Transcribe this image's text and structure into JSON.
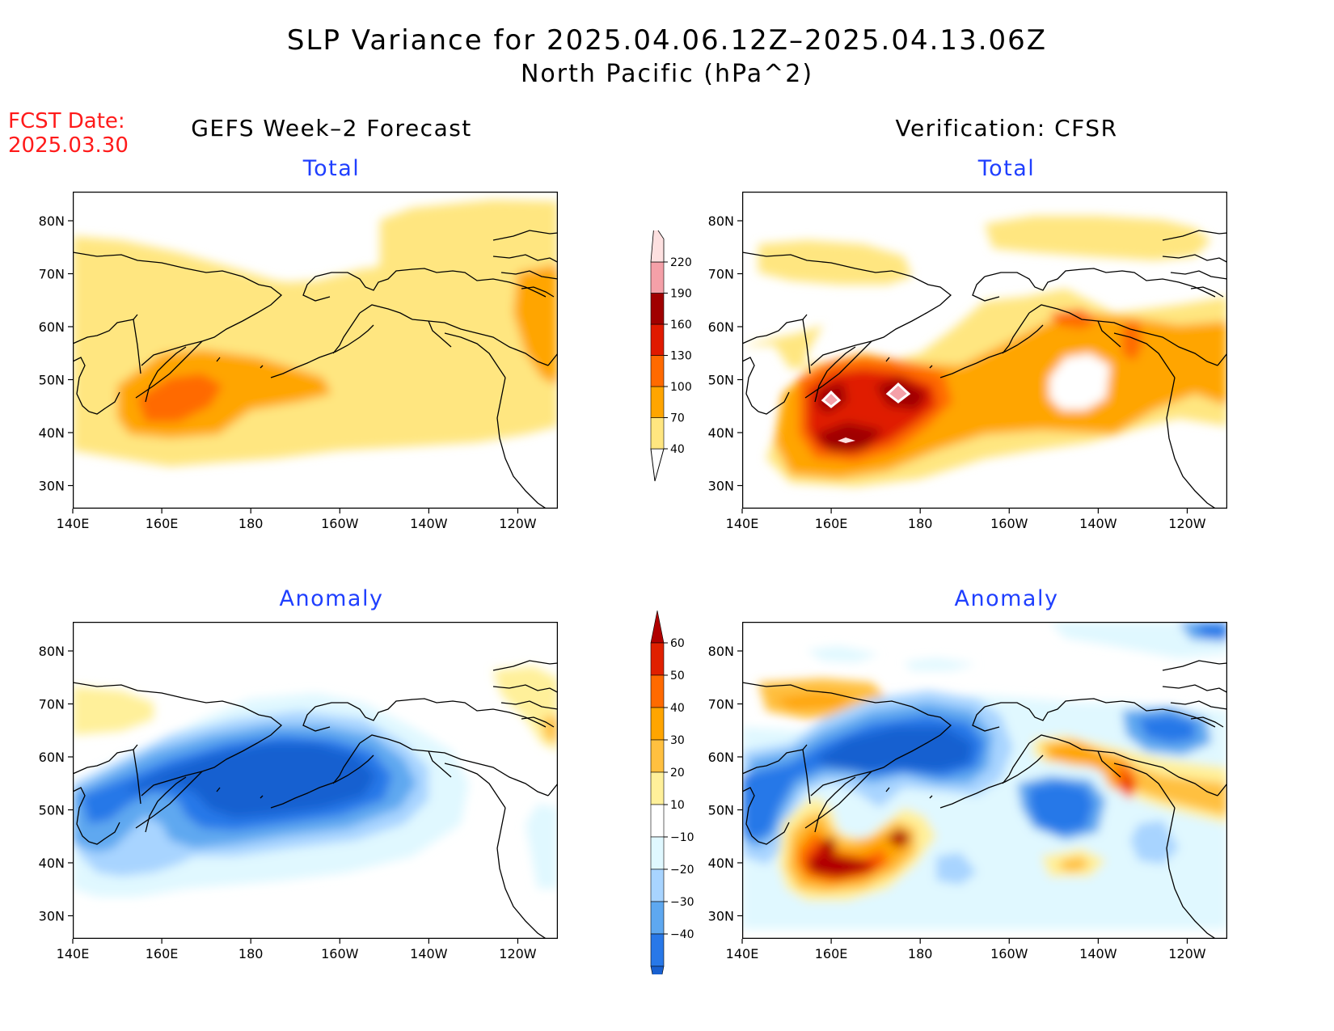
{
  "title": {
    "line1": "SLP Variance for 2025.04.06.12Z–2025.04.13.06Z",
    "line2": "North Pacific (hPa^2)"
  },
  "fcst_date": {
    "label": "FCST Date:",
    "value": "2025.03.30"
  },
  "columns": {
    "left": "GEFS Week–2 Forecast",
    "right": "Verification: CFSR"
  },
  "panels": {
    "forecast_total": {
      "subtitle": "Total"
    },
    "verification_total": {
      "subtitle": "Total"
    },
    "forecast_anomaly": {
      "subtitle": "Anomaly"
    },
    "verification_anomaly": {
      "subtitle": "Anomaly"
    }
  },
  "axes": {
    "x_ticks": [
      "140E",
      "160E",
      "180",
      "160W",
      "140W",
      "120W"
    ],
    "y_ticks": [
      "80N",
      "70N",
      "60N",
      "50N",
      "40N",
      "30N"
    ]
  },
  "colorbars": {
    "total": {
      "levels": [
        "40",
        "70",
        "100",
        "130",
        "160",
        "190",
        "220"
      ],
      "colors": [
        "#ffe680",
        "#ffa500",
        "#ff6a00",
        "#e01a00",
        "#a00000",
        "#f4a0a8",
        "#fde0e0"
      ]
    },
    "anomaly": {
      "levels": [
        "60",
        "50",
        "40",
        "30",
        "20",
        "10",
        "−10",
        "−20",
        "−30",
        "−40"
      ],
      "colors": [
        "#b00000",
        "#e02000",
        "#ff6a00",
        "#ffa500",
        "#ffc040",
        "#fff09a",
        "#ffffff",
        "#e0f8ff",
        "#a8d4ff",
        "#5ea8f0",
        "#2878e8",
        "#1860d0"
      ]
    }
  },
  "colors": {
    "title_red": "#ff1a1a",
    "subtitle_blue": "#1f3fff"
  }
}
